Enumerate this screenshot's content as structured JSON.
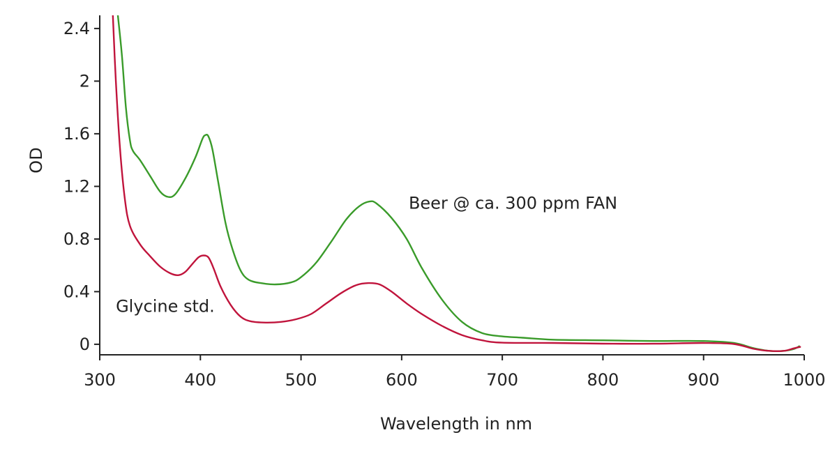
{
  "chart_data": {
    "type": "line",
    "title": "",
    "xlabel": "Wavelength in nm",
    "ylabel": "OD",
    "xlim": [
      300,
      1000
    ],
    "ylim": [
      -0.08,
      2.5
    ],
    "grid": false,
    "x_ticks": [
      300,
      400,
      500,
      600,
      700,
      800,
      900,
      1000
    ],
    "x_tick_labels": [
      "300",
      "400",
      "500",
      "600",
      "700",
      "800",
      "900",
      "1000"
    ],
    "y_ticks": [
      0,
      0.4,
      0.8,
      1.2,
      1.6,
      2,
      2.4
    ],
    "y_tick_labels": [
      "0",
      "0.4",
      "0.8",
      "1.2",
      "1.6",
      "2",
      "2.4"
    ],
    "series": [
      {
        "name": "Beer @ ca. 300 ppm FAN",
        "color": "#3a9b2a",
        "points": [
          [
            318,
            2.5
          ],
          [
            322,
            2.2
          ],
          [
            326,
            1.8
          ],
          [
            330,
            1.55
          ],
          [
            333,
            1.47
          ],
          [
            340,
            1.4
          ],
          [
            350,
            1.28
          ],
          [
            360,
            1.16
          ],
          [
            368,
            1.12
          ],
          [
            375,
            1.14
          ],
          [
            385,
            1.26
          ],
          [
            395,
            1.42
          ],
          [
            402,
            1.56
          ],
          [
            405,
            1.59
          ],
          [
            408,
            1.58
          ],
          [
            412,
            1.48
          ],
          [
            418,
            1.22
          ],
          [
            425,
            0.92
          ],
          [
            432,
            0.72
          ],
          [
            440,
            0.56
          ],
          [
            448,
            0.49
          ],
          [
            460,
            0.465
          ],
          [
            475,
            0.455
          ],
          [
            490,
            0.47
          ],
          [
            500,
            0.51
          ],
          [
            515,
            0.62
          ],
          [
            530,
            0.78
          ],
          [
            545,
            0.95
          ],
          [
            558,
            1.05
          ],
          [
            568,
            1.085
          ],
          [
            575,
            1.07
          ],
          [
            590,
            0.96
          ],
          [
            605,
            0.8
          ],
          [
            620,
            0.58
          ],
          [
            640,
            0.34
          ],
          [
            660,
            0.17
          ],
          [
            680,
            0.085
          ],
          [
            700,
            0.06
          ],
          [
            720,
            0.05
          ],
          [
            750,
            0.035
          ],
          [
            800,
            0.03
          ],
          [
            850,
            0.025
          ],
          [
            900,
            0.025
          ],
          [
            930,
            0.01
          ],
          [
            950,
            -0.03
          ],
          [
            965,
            -0.05
          ],
          [
            980,
            -0.05
          ],
          [
            990,
            -0.035
          ],
          [
            995,
            -0.015
          ]
        ]
      },
      {
        "name": "Glycine std.",
        "color": "#c0143c",
        "points": [
          [
            313,
            2.5
          ],
          [
            316,
            2.0
          ],
          [
            320,
            1.5
          ],
          [
            325,
            1.1
          ],
          [
            330,
            0.9
          ],
          [
            340,
            0.76
          ],
          [
            350,
            0.67
          ],
          [
            360,
            0.59
          ],
          [
            370,
            0.54
          ],
          [
            378,
            0.525
          ],
          [
            385,
            0.55
          ],
          [
            392,
            0.61
          ],
          [
            398,
            0.66
          ],
          [
            403,
            0.675
          ],
          [
            408,
            0.66
          ],
          [
            413,
            0.58
          ],
          [
            420,
            0.44
          ],
          [
            430,
            0.3
          ],
          [
            440,
            0.21
          ],
          [
            450,
            0.175
          ],
          [
            465,
            0.165
          ],
          [
            480,
            0.17
          ],
          [
            495,
            0.19
          ],
          [
            510,
            0.23
          ],
          [
            525,
            0.31
          ],
          [
            540,
            0.39
          ],
          [
            555,
            0.45
          ],
          [
            567,
            0.465
          ],
          [
            578,
            0.455
          ],
          [
            590,
            0.4
          ],
          [
            605,
            0.31
          ],
          [
            620,
            0.23
          ],
          [
            640,
            0.14
          ],
          [
            660,
            0.07
          ],
          [
            680,
            0.03
          ],
          [
            700,
            0.012
          ],
          [
            750,
            0.01
          ],
          [
            800,
            0.005
          ],
          [
            850,
            0.004
          ],
          [
            900,
            0.01
          ],
          [
            930,
            0.002
          ],
          [
            950,
            -0.035
          ],
          [
            965,
            -0.05
          ],
          [
            980,
            -0.05
          ],
          [
            990,
            -0.03
          ],
          [
            996,
            -0.02
          ]
        ]
      }
    ],
    "annotations": [
      {
        "text": "Beer @ ca. 300 ppm FAN",
        "series": 0,
        "x": 607,
        "y": 1.03
      },
      {
        "text": "Glycine std.",
        "series": 1,
        "x": 316,
        "y": 0.245
      }
    ]
  }
}
